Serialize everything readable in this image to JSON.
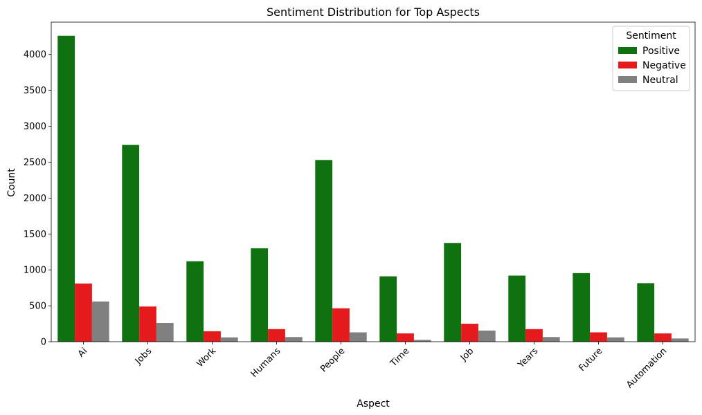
{
  "chart_data": {
    "type": "bar",
    "title": "Sentiment Distribution for Top Aspects",
    "xlabel": "Aspect",
    "ylabel": "Count",
    "categories": [
      "Ai",
      "Jobs",
      "Work",
      "Humans",
      "People",
      "Time",
      "Job",
      "Years",
      "Future",
      "Automation"
    ],
    "series": [
      {
        "name": "Positive",
        "color": "#107110",
        "values": [
          4260,
          2740,
          1120,
          1300,
          2530,
          910,
          1375,
          920,
          955,
          815
        ]
      },
      {
        "name": "Negative",
        "color": "#e41a1c",
        "values": [
          810,
          490,
          145,
          175,
          465,
          115,
          250,
          175,
          130,
          115
        ]
      },
      {
        "name": "Neutral",
        "color": "#808080",
        "values": [
          560,
          260,
          60,
          65,
          130,
          25,
          155,
          65,
          60,
          45
        ]
      }
    ],
    "ylim": [
      0,
      4450
    ],
    "yticks": [
      0,
      500,
      1000,
      1500,
      2000,
      2500,
      3000,
      3500,
      4000
    ],
    "legend": {
      "title": "Sentiment",
      "placement": "top-right"
    },
    "grid": false,
    "xtick_rotation": 45
  }
}
